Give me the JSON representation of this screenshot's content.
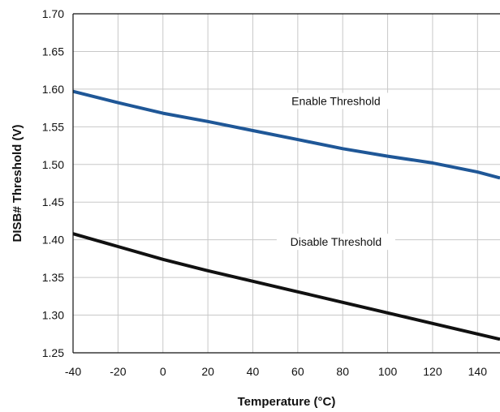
{
  "chart_data": {
    "type": "line",
    "title": "",
    "xlabel": "Temperature (°C)",
    "ylabel": "DISB# Threshold (V)",
    "xlim": [
      -40,
      150
    ],
    "ylim": [
      1.25,
      1.7
    ],
    "x_ticks": [
      -40,
      -20,
      0,
      20,
      40,
      60,
      80,
      100,
      120,
      140
    ],
    "y_ticks": [
      "1.70",
      "1.65",
      "1.60",
      "1.55",
      "1.50",
      "1.45",
      "1.40",
      "1.35",
      "1.30",
      "1.25"
    ],
    "grid": true,
    "legend": "none",
    "series": [
      {
        "name": "Enable Threshold",
        "color": "#1f5797",
        "x": [
          -40,
          -20,
          0,
          20,
          40,
          60,
          80,
          100,
          120,
          140,
          150
        ],
        "y": [
          1.597,
          1.582,
          1.568,
          1.557,
          1.545,
          1.533,
          1.521,
          1.511,
          1.502,
          1.49,
          1.482
        ]
      },
      {
        "name": "Disable Threshold",
        "color": "#111111",
        "x": [
          -40,
          -20,
          0,
          20,
          40,
          60,
          80,
          100,
          120,
          140,
          150
        ],
        "y": [
          1.408,
          1.391,
          1.374,
          1.359,
          1.345,
          1.331,
          1.317,
          1.303,
          1.289,
          1.275,
          1.268
        ]
      }
    ],
    "annotations": [
      {
        "text": "Enable Threshold",
        "x": 77,
        "y": 1.58
      },
      {
        "text": "Disable Threshold",
        "x": 77,
        "y": 1.393
      }
    ]
  }
}
